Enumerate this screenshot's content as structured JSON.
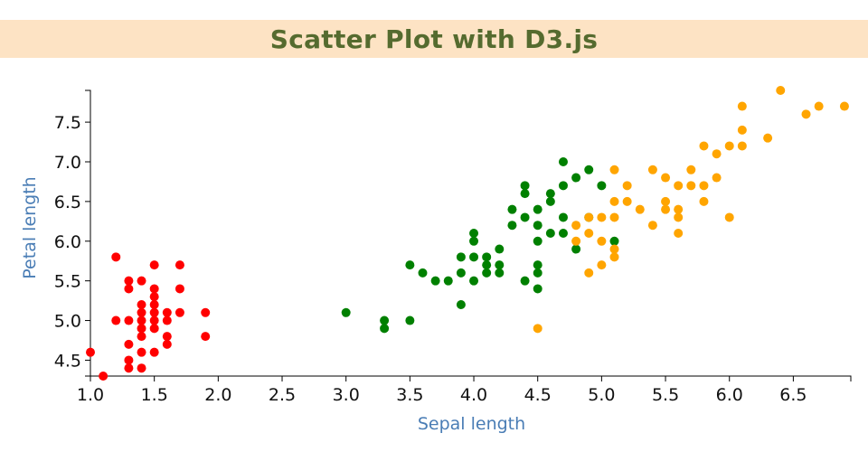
{
  "header": {
    "title": "Scatter Plot with D3.js",
    "background": "#fde3c4",
    "title_color": "#556b2f"
  },
  "chart_data": {
    "type": "scatter",
    "title": "Scatter Plot with D3.js",
    "xlabel": "Sepal length",
    "ylabel": "Petal length",
    "xlim": [
      1.0,
      6.95
    ],
    "ylim": [
      4.3,
      7.9
    ],
    "x_ticks": [
      "1.0",
      "1.5",
      "2.0",
      "2.5",
      "3.0",
      "3.5",
      "4.0",
      "4.5",
      "5.0",
      "5.5",
      "6.0",
      "6.5"
    ],
    "y_ticks": [
      "4.5",
      "5.0",
      "5.5",
      "6.0",
      "6.5",
      "7.0",
      "7.5"
    ],
    "grid": false,
    "label_color": "#4a7db5",
    "series": [
      {
        "color": "#ff0000",
        "points": [
          [
            1.0,
            4.6
          ],
          [
            1.1,
            4.3
          ],
          [
            1.2,
            5.8
          ],
          [
            1.2,
            5.0
          ],
          [
            1.3,
            5.5
          ],
          [
            1.3,
            5.4
          ],
          [
            1.3,
            5.0
          ],
          [
            1.3,
            4.7
          ],
          [
            1.3,
            4.5
          ],
          [
            1.3,
            4.4
          ],
          [
            1.4,
            5.5
          ],
          [
            1.4,
            5.2
          ],
          [
            1.4,
            5.1
          ],
          [
            1.4,
            5.0
          ],
          [
            1.4,
            4.9
          ],
          [
            1.4,
            4.8
          ],
          [
            1.4,
            4.6
          ],
          [
            1.4,
            4.4
          ],
          [
            1.5,
            5.7
          ],
          [
            1.5,
            5.4
          ],
          [
            1.5,
            5.3
          ],
          [
            1.5,
            5.2
          ],
          [
            1.5,
            5.1
          ],
          [
            1.5,
            5.0
          ],
          [
            1.5,
            4.9
          ],
          [
            1.5,
            4.6
          ],
          [
            1.6,
            5.1
          ],
          [
            1.6,
            5.0
          ],
          [
            1.6,
            4.8
          ],
          [
            1.6,
            4.7
          ],
          [
            1.7,
            5.7
          ],
          [
            1.7,
            5.4
          ],
          [
            1.7,
            5.1
          ],
          [
            1.9,
            5.1
          ],
          [
            1.9,
            4.8
          ]
        ]
      },
      {
        "color": "#008000",
        "points": [
          [
            3.0,
            5.1
          ],
          [
            3.3,
            5.0
          ],
          [
            3.3,
            4.9
          ],
          [
            3.5,
            5.7
          ],
          [
            3.5,
            5.0
          ],
          [
            3.6,
            5.6
          ],
          [
            3.7,
            5.5
          ],
          [
            3.8,
            5.5
          ],
          [
            3.9,
            5.8
          ],
          [
            3.9,
            5.6
          ],
          [
            3.9,
            5.2
          ],
          [
            4.0,
            6.1
          ],
          [
            4.0,
            6.0
          ],
          [
            4.0,
            5.8
          ],
          [
            4.0,
            5.5
          ],
          [
            4.1,
            5.8
          ],
          [
            4.1,
            5.7
          ],
          [
            4.1,
            5.6
          ],
          [
            4.2,
            5.9
          ],
          [
            4.2,
            5.7
          ],
          [
            4.2,
            5.6
          ],
          [
            4.3,
            6.4
          ],
          [
            4.3,
            6.2
          ],
          [
            4.4,
            6.7
          ],
          [
            4.4,
            6.6
          ],
          [
            4.4,
            6.3
          ],
          [
            4.4,
            5.5
          ],
          [
            4.5,
            6.4
          ],
          [
            4.5,
            6.2
          ],
          [
            4.5,
            6.0
          ],
          [
            4.5,
            5.7
          ],
          [
            4.5,
            5.6
          ],
          [
            4.5,
            5.4
          ],
          [
            4.6,
            6.6
          ],
          [
            4.6,
            6.5
          ],
          [
            4.6,
            6.1
          ],
          [
            4.7,
            7.0
          ],
          [
            4.7,
            6.7
          ],
          [
            4.7,
            6.3
          ],
          [
            4.7,
            6.1
          ],
          [
            4.8,
            6.8
          ],
          [
            4.8,
            5.9
          ],
          [
            4.9,
            6.9
          ],
          [
            4.9,
            6.3
          ],
          [
            5.0,
            6.7
          ],
          [
            5.1,
            6.0
          ]
        ]
      },
      {
        "color": "#ffa500",
        "points": [
          [
            4.5,
            4.9
          ],
          [
            4.8,
            6.2
          ],
          [
            4.8,
            6.0
          ],
          [
            4.9,
            6.3
          ],
          [
            4.9,
            6.1
          ],
          [
            4.9,
            5.6
          ],
          [
            5.0,
            6.3
          ],
          [
            5.0,
            6.0
          ],
          [
            5.0,
            5.7
          ],
          [
            5.1,
            6.9
          ],
          [
            5.1,
            6.5
          ],
          [
            5.1,
            6.3
          ],
          [
            5.1,
            5.9
          ],
          [
            5.1,
            5.8
          ],
          [
            5.2,
            6.7
          ],
          [
            5.2,
            6.5
          ],
          [
            5.3,
            6.4
          ],
          [
            5.4,
            6.9
          ],
          [
            5.4,
            6.2
          ],
          [
            5.5,
            6.8
          ],
          [
            5.5,
            6.5
          ],
          [
            5.5,
            6.4
          ],
          [
            5.6,
            6.7
          ],
          [
            5.6,
            6.4
          ],
          [
            5.6,
            6.3
          ],
          [
            5.6,
            6.1
          ],
          [
            5.7,
            6.9
          ],
          [
            5.7,
            6.7
          ],
          [
            5.8,
            7.2
          ],
          [
            5.8,
            6.7
          ],
          [
            5.8,
            6.5
          ],
          [
            5.9,
            7.1
          ],
          [
            5.9,
            6.8
          ],
          [
            6.0,
            7.2
          ],
          [
            6.0,
            6.3
          ],
          [
            6.1,
            7.7
          ],
          [
            6.1,
            7.4
          ],
          [
            6.1,
            7.2
          ],
          [
            6.3,
            7.3
          ],
          [
            6.4,
            7.9
          ],
          [
            6.6,
            7.6
          ],
          [
            6.7,
            7.7
          ],
          [
            6.9,
            7.7
          ]
        ]
      }
    ]
  }
}
